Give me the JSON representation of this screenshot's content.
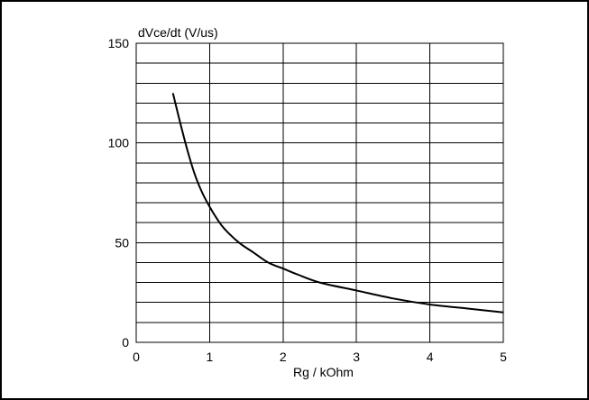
{
  "chart_data": {
    "type": "line",
    "title": "",
    "xlabel": "Rg / kOhm",
    "ylabel": "dVce/dt (V/us)",
    "xlim": [
      0,
      5
    ],
    "ylim": [
      0,
      150
    ],
    "x_ticks": [
      0,
      1,
      2,
      3,
      4,
      5
    ],
    "y_ticks": [
      0,
      50,
      100,
      150
    ],
    "x_tick_labels": [
      "0",
      "1",
      "2",
      "3",
      "4",
      "5"
    ],
    "y_tick_labels": [
      "0",
      "50",
      "100",
      "150"
    ],
    "grid": true,
    "minor_y_gridlines_per_major": 5,
    "line_color": "#000000",
    "series": [
      {
        "x": [
          0.5,
          0.6,
          0.7,
          0.8,
          0.9,
          1.0,
          1.1,
          1.2,
          1.4,
          1.6,
          1.8,
          2.0,
          2.2,
          2.5,
          3.0,
          3.5,
          4.0,
          4.5,
          5.0
        ],
        "values": [
          125,
          110,
          96,
          84,
          75,
          68,
          62,
          57,
          50,
          45,
          40,
          37,
          34,
          30,
          26,
          22,
          19,
          17,
          15
        ]
      }
    ]
  }
}
